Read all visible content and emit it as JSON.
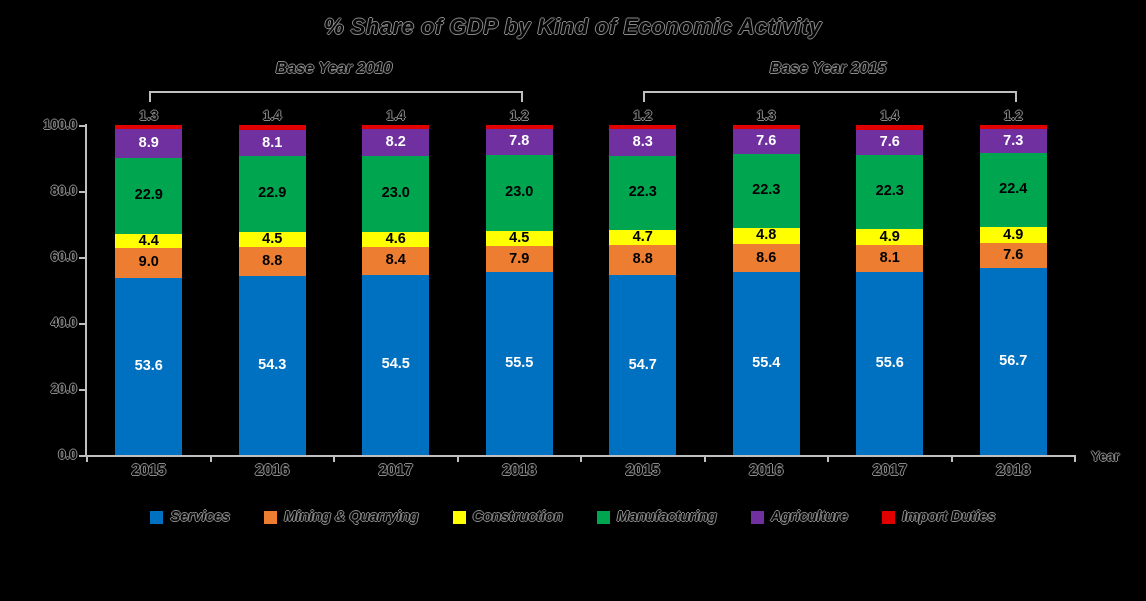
{
  "title": "% Share of GDP by Kind of Economic Activity",
  "axis_color": "#bfbfbf",
  "chart_data": {
    "type": "bar",
    "stacked": true,
    "title": "% Share of GDP by Kind of Economic Activity",
    "xlabel": "Year",
    "ylabel": "",
    "ylim": [
      0,
      100
    ],
    "yticks": [
      "100.0",
      "80.0",
      "60.0",
      "40.0",
      "20.0",
      "0.0"
    ],
    "grid": false,
    "legend_position": "bottom",
    "categories": [
      "2015",
      "2016",
      "2017",
      "2018",
      "2015",
      "2016",
      "2017",
      "2018"
    ],
    "groups": [
      {
        "label": "Base Year 2010",
        "span": [
          0,
          3
        ]
      },
      {
        "label": "Base Year 2015",
        "span": [
          4,
          7
        ]
      }
    ],
    "series": [
      {
        "name": "Services",
        "color": "#0070c0",
        "label_color": "#ffffff",
        "label_outside": false,
        "values": [
          53.6,
          54.3,
          54.5,
          55.5,
          54.7,
          55.4,
          55.6,
          56.7
        ]
      },
      {
        "name": "Mining & Quarrying",
        "color": "#ed7d31",
        "label_color": "#000000",
        "label_outside": false,
        "values": [
          9.0,
          8.8,
          8.4,
          7.9,
          8.8,
          8.6,
          8.1,
          7.6
        ]
      },
      {
        "name": "Construction",
        "color": "#ffff00",
        "label_color": "#000000",
        "label_outside": false,
        "values": [
          4.4,
          4.5,
          4.6,
          4.5,
          4.7,
          4.8,
          4.9,
          4.9
        ]
      },
      {
        "name": "Manufacturing",
        "color": "#00a550",
        "label_color": "#000000",
        "label_outside": false,
        "values": [
          22.9,
          22.9,
          23.0,
          23.0,
          22.3,
          22.3,
          22.3,
          22.4
        ]
      },
      {
        "name": "Agriculture",
        "color": "#7030a0",
        "label_color": "#ffffff",
        "label_outside": false,
        "values": [
          8.9,
          8.1,
          8.2,
          7.8,
          8.3,
          7.6,
          7.6,
          7.3
        ]
      },
      {
        "name": "Import Duties",
        "color": "#e00000",
        "label_color": "#060606",
        "label_outside": true,
        "values": [
          1.3,
          1.4,
          1.4,
          1.2,
          1.2,
          1.3,
          1.4,
          1.2
        ]
      }
    ]
  }
}
